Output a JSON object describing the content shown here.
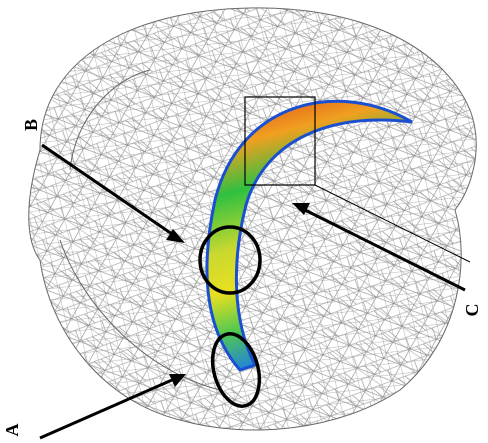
{
  "labels": {
    "a": "A",
    "b": "B",
    "c": "C"
  }
}
